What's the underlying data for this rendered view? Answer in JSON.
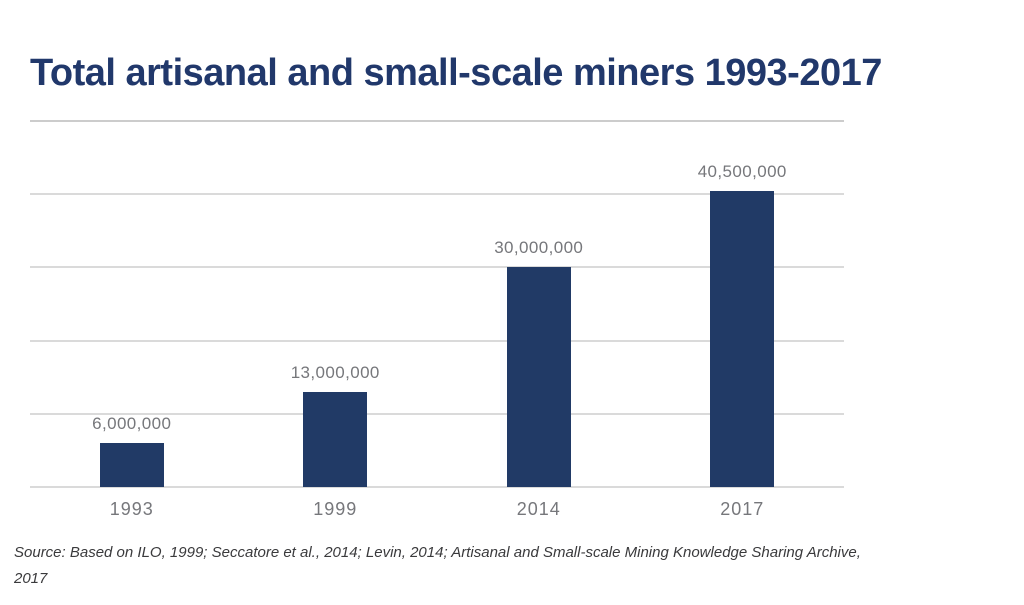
{
  "title": "Total artisanal and small-scale miners 1993-2017",
  "source_note": {
    "line1": "Source: Based on ILO, 1999; Seccatore et al., 2014; Levin, 2014; Artisanal and Small-scale Mining Knowledge Sharing Archive,",
    "line2": "2017"
  },
  "colors": {
    "bar": "#213a66",
    "title_text": "#21386b",
    "label_text": "#76777b",
    "gridline": "#dadada",
    "background": "#ffffff"
  },
  "chart_data": {
    "type": "bar",
    "title": "Total artisanal and small-scale miners 1993-2017",
    "categories": [
      "1993",
      "1999",
      "2014",
      "2017"
    ],
    "values": [
      6000000,
      13000000,
      30000000,
      40500000
    ],
    "value_labels": [
      "6,000,000",
      "13,000,000",
      "30,000,000",
      "40,500,000"
    ],
    "xlabel": "",
    "ylabel": "",
    "ylim": [
      0,
      50000000
    ],
    "gridline_interval": 10000000,
    "grid": "horizontal only, no y-axis tick labels",
    "legend": "none"
  }
}
